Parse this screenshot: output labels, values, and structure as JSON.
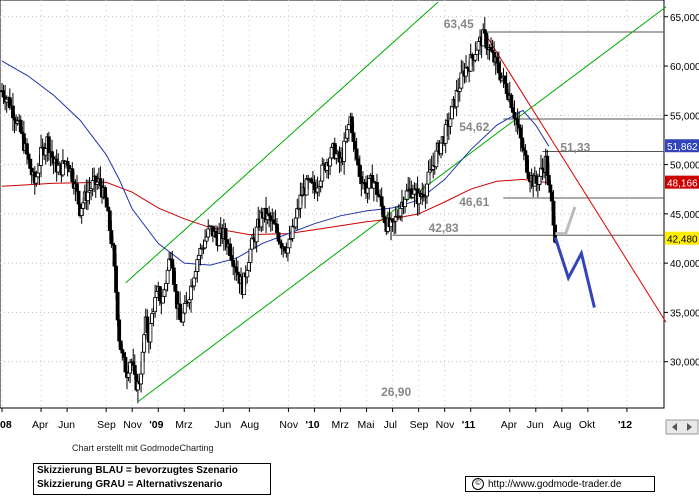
{
  "chart_data": {
    "type": "candlestick",
    "y_axis": {
      "ticks": [
        "65,000",
        "60,000",
        "55,000",
        "50,000",
        "45,000",
        "40,000",
        "35,000",
        "30,000"
      ],
      "tick_values": [
        65000,
        60000,
        55000,
        50000,
        45000,
        40000,
        35000,
        30000
      ],
      "ylim": [
        25300,
        66700
      ],
      "position": "right"
    },
    "x_axis": {
      "ticks": [
        "08",
        "Apr",
        "Jun",
        "Sep",
        "Nov",
        "'09",
        "Mrz",
        "Jun",
        "Aug",
        "Nov",
        "'10",
        "Mrz",
        "Mai",
        "Jul",
        "Sep",
        "Nov",
        "'11",
        "Apr",
        "Jun",
        "Aug",
        "Okt",
        "'12"
      ],
      "bold_ticks": [
        "08",
        "'09",
        "'10",
        "'11",
        "'12"
      ],
      "tick_index": [
        0,
        3,
        5,
        8,
        10,
        12,
        14,
        17,
        19,
        22,
        24,
        26,
        28,
        30,
        32,
        34,
        36,
        39,
        41,
        43,
        45,
        48
      ],
      "month_range": [
        0,
        51
      ]
    },
    "price_series": [
      [
        0,
        57500
      ],
      [
        0.5,
        56500
      ],
      [
        1,
        55000
      ],
      [
        1.5,
        53000
      ],
      [
        2,
        50500
      ],
      [
        2.5,
        48000
      ],
      [
        3,
        51000
      ],
      [
        3.5,
        52500
      ],
      [
        4,
        50000
      ],
      [
        4.5,
        49500
      ],
      [
        5,
        50500
      ],
      [
        5.5,
        48500
      ],
      [
        6,
        45500
      ],
      [
        6.5,
        47000
      ],
      [
        7,
        48000
      ],
      [
        7.5,
        48200
      ],
      [
        8,
        46000
      ],
      [
        8.5,
        41500
      ],
      [
        8.8,
        36500
      ],
      [
        9,
        32500
      ],
      [
        9.3,
        30000
      ],
      [
        9.6,
        29000
      ],
      [
        9.9,
        30500
      ],
      [
        10.2,
        28000
      ],
      [
        10.5,
        27500
      ],
      [
        10.8,
        30500
      ],
      [
        11,
        34000
      ],
      [
        11.3,
        32500
      ],
      [
        11.6,
        35500
      ],
      [
        12,
        37000
      ],
      [
        12.3,
        36000
      ],
      [
        12.7,
        39000
      ],
      [
        13,
        41500
      ],
      [
        13.3,
        37000
      ],
      [
        13.7,
        34000
      ],
      [
        14,
        35000
      ],
      [
        14.5,
        37500
      ],
      [
        15,
        40500
      ],
      [
        15.5,
        42000
      ],
      [
        16,
        43500
      ],
      [
        16.5,
        42500
      ],
      [
        17,
        43000
      ],
      [
        17.5,
        41500
      ],
      [
        18,
        39500
      ],
      [
        18.5,
        37500
      ],
      [
        19,
        41000
      ],
      [
        19.5,
        43000
      ],
      [
        20,
        45000
      ],
      [
        20.5,
        44500
      ],
      [
        21,
        43500
      ],
      [
        21.5,
        42000
      ],
      [
        22,
        41500
      ],
      [
        22.5,
        44000
      ],
      [
        23,
        47000
      ],
      [
        23.5,
        48000
      ],
      [
        24,
        47500
      ],
      [
        24.5,
        49000
      ],
      [
        25,
        50500
      ],
      [
        25.5,
        51500
      ],
      [
        26,
        50000
      ],
      [
        26.5,
        53000
      ],
      [
        26.8,
        55000
      ],
      [
        27,
        52000
      ],
      [
        27.5,
        49000
      ],
      [
        28,
        47500
      ],
      [
        28.5,
        48500
      ],
      [
        29,
        46500
      ],
      [
        29.5,
        44000
      ],
      [
        30,
        43500
      ],
      [
        30.5,
        45500
      ],
      [
        31,
        47000
      ],
      [
        31.5,
        47500
      ],
      [
        32,
        46500
      ],
      [
        32.5,
        47500
      ],
      [
        33,
        49500
      ],
      [
        33.5,
        51500
      ],
      [
        34,
        53000
      ],
      [
        34.5,
        55000
      ],
      [
        35,
        57500
      ],
      [
        35.5,
        59500
      ],
      [
        36,
        60500
      ],
      [
        36.5,
        62000
      ],
      [
        37,
        63000
      ],
      [
        37.5,
        61500
      ],
      [
        38,
        60000
      ],
      [
        38.5,
        58500
      ],
      [
        39,
        57000
      ],
      [
        39.5,
        54500
      ],
      [
        40,
        51500
      ],
      [
        40.5,
        49000
      ],
      [
        41,
        48000
      ],
      [
        41.5,
        49500
      ],
      [
        41.8,
        50500
      ],
      [
        42,
        47500
      ],
      [
        42.3,
        45500
      ],
      [
        42.5,
        42600
      ]
    ],
    "ma_red": [
      [
        0,
        47800
      ],
      [
        4,
        48100
      ],
      [
        8,
        48200
      ],
      [
        10,
        47200
      ],
      [
        12,
        45600
      ],
      [
        14,
        44500
      ],
      [
        16,
        43600
      ],
      [
        19,
        42900
      ],
      [
        22,
        43000
      ],
      [
        25,
        43600
      ],
      [
        28,
        44200
      ],
      [
        30,
        44500
      ],
      [
        32,
        45000
      ],
      [
        34,
        46200
      ],
      [
        36,
        47500
      ],
      [
        38,
        48300
      ],
      [
        40,
        48500
      ],
      [
        42,
        48166
      ]
    ],
    "ma_blue": [
      [
        0,
        60500
      ],
      [
        2,
        59000
      ],
      [
        4,
        57000
      ],
      [
        6,
        54500
      ],
      [
        8,
        51000
      ],
      [
        9,
        48500
      ],
      [
        10,
        45500
      ],
      [
        12,
        42000
      ],
      [
        14,
        40000
      ],
      [
        16,
        39800
      ],
      [
        18,
        40500
      ],
      [
        20,
        42000
      ],
      [
        22,
        43000
      ],
      [
        24,
        44000
      ],
      [
        26,
        44800
      ],
      [
        28,
        45300
      ],
      [
        30,
        45600
      ],
      [
        32,
        46400
      ],
      [
        34,
        48500
      ],
      [
        36,
        51500
      ],
      [
        38,
        54000
      ],
      [
        40,
        55500
      ],
      [
        41,
        54000
      ],
      [
        42,
        51862
      ]
    ],
    "channel_lines": [
      {
        "color": "#00aa00",
        "points": [
          [
            9.5,
            38000
          ],
          [
            33.5,
            66500
          ]
        ]
      },
      {
        "color": "#00aa00",
        "points": [
          [
            10.5,
            26000
          ],
          [
            51,
            66000
          ]
        ]
      }
    ],
    "down_trend": {
      "color": "#dd0000",
      "points": [
        [
          37,
          63500
        ],
        [
          51,
          34000
        ]
      ]
    },
    "horizontal_levels": [
      {
        "value": 63450,
        "label": "63,45",
        "x_start": 37
      },
      {
        "value": 54620,
        "label": "54,62",
        "x_start": 38.5
      },
      {
        "value": 51330,
        "label": "51,33",
        "x_start": 41.5
      },
      {
        "value": 46610,
        "label": "46,61",
        "x_start": 38.5
      },
      {
        "value": 42830,
        "label": "42,83",
        "x_start": 30
      }
    ],
    "price_labels": [
      {
        "value": 51862,
        "label": "51,862",
        "color": "#3344bb"
      },
      {
        "value": 48166,
        "label": "48,166",
        "color": "#cc0000"
      },
      {
        "value": 42480,
        "label": "42,480",
        "color": "#ffee00"
      }
    ],
    "low_label": {
      "value": 26900,
      "label": "26,90",
      "x": 30.5
    },
    "scenario_blue": {
      "color": "#3344bb",
      "points": [
        [
          42.5,
          42600
        ],
        [
          43.5,
          38500
        ],
        [
          44.5,
          41000
        ],
        [
          45.5,
          35500
        ]
      ]
    },
    "scenario_gray": {
      "color": "#bbbbbb",
      "points": [
        [
          42.5,
          43000
        ],
        [
          43.3,
          43000
        ],
        [
          44,
          45700
        ]
      ]
    }
  },
  "footer": {
    "credit": "Chart erstellt mit GodmodeCharting",
    "legend": [
      "Skizzierung BLAU = bevorzugtes Szenario",
      "Skizzierung GRAU = Alternativszenario"
    ],
    "url": "http://www.godmode-trader.de",
    "copyright_symbol": "©"
  }
}
